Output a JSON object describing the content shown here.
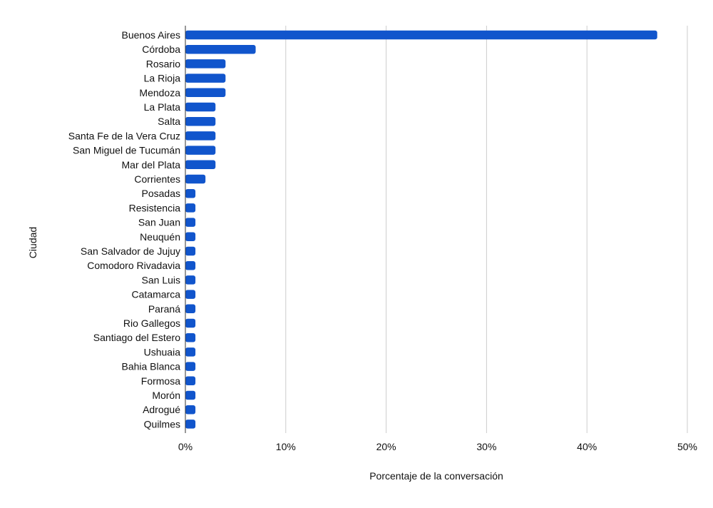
{
  "chart_data": {
    "type": "bar",
    "orientation": "horizontal",
    "title": "",
    "xlabel": "Porcentaje de la conversación",
    "ylabel": "Ciudad",
    "xlim": [
      0,
      50
    ],
    "x_ticks": [
      0,
      10,
      20,
      30,
      40,
      50
    ],
    "x_tick_labels": [
      "0%",
      "10%",
      "20%",
      "30%",
      "40%",
      "50%"
    ],
    "grid": "vertical",
    "bar_color": "#1155CC",
    "categories": [
      "Buenos Aires",
      "Córdoba",
      "Rosario",
      "La Rioja",
      "Mendoza",
      "La Plata",
      "Salta",
      "Santa Fe de la Vera Cruz",
      "San Miguel de Tucumán",
      "Mar del Plata",
      "Corrientes",
      "Posadas",
      "Resistencia",
      "San Juan",
      "Neuquén",
      "San Salvador de Jujuy",
      "Comodoro Rivadavia",
      "San Luis",
      "Catamarca",
      "Paraná",
      "Rio Gallegos",
      "Santiago del Estero",
      "Ushuaia",
      "Bahia Blanca",
      "Formosa",
      "Morón",
      "Adrogué",
      "Quilmes"
    ],
    "values": [
      47,
      7,
      4,
      4,
      4,
      3,
      3,
      3,
      3,
      3,
      2,
      1,
      1,
      1,
      1,
      1,
      1,
      1,
      1,
      1,
      1,
      1,
      1,
      1,
      1,
      1,
      1,
      1
    ]
  }
}
